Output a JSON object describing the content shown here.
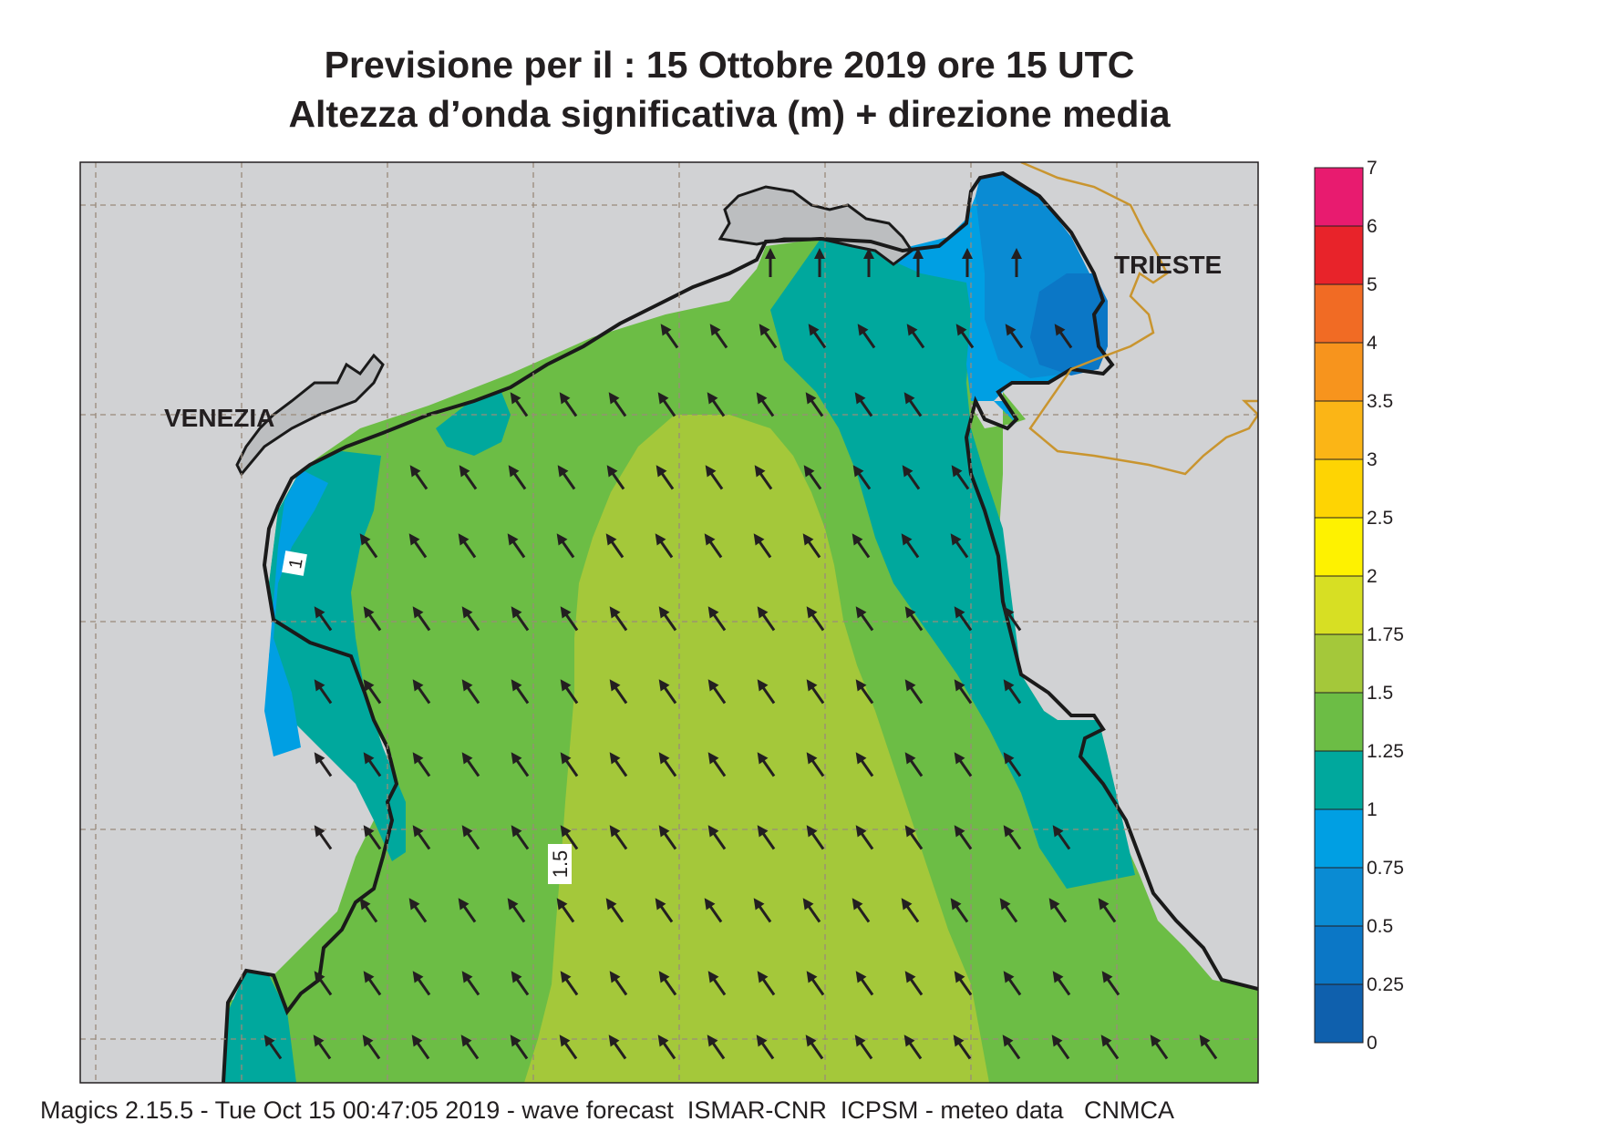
{
  "title": {
    "line1": "Previsione per il  :  15  Ottobre  2019   ore 15 UTC",
    "line2": "Altezza d’onda significativa (m) + direzione media"
  },
  "map": {
    "city_labels": [
      "VENEZIA",
      "TRIESTE"
    ],
    "contour_labels": [
      "1",
      "1.5"
    ],
    "arrow_direction": "north-west"
  },
  "legend": {
    "levels": [
      "7",
      "6",
      "5",
      "4",
      "3.5",
      "3",
      "2.5",
      "2",
      "1.75",
      "1.5",
      "1.25",
      "1",
      "0.75",
      "0.5",
      "0.25",
      "0"
    ],
    "colors": [
      "#e81b6f",
      "#e8232a",
      "#f16b24",
      "#f7941d",
      "#fbb516",
      "#fed403",
      "#fef200",
      "#d7df23",
      "#a4c83a",
      "#6cbd45",
      "#00a89d",
      "#009fe3",
      "#0a8bd3",
      "#0b77c6",
      "#0f60ad"
    ]
  },
  "colors": {
    "land": "#d1d2d4",
    "coast": "#1a1a1a",
    "border": "#c9952f",
    "grid": "#9a8a7a",
    "arrow": "#231f20"
  },
  "footer": "Magics 2.15.5 - Tue Oct 15 00:47:05 2019 - wave forecast  ISMAR-CNR  ICPSM - meteo data   CNMCA"
}
